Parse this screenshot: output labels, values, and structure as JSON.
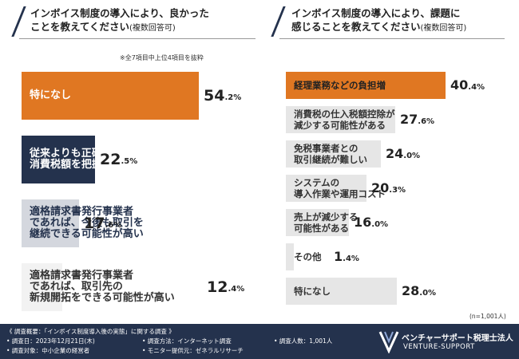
{
  "chart_data": [
    {
      "type": "bar",
      "title": "インボイス制度の導入により、良かったことを教えてください(複数回答可)",
      "title_lines": [
        "インボイス制度の導入により、良かった",
        "ことを教えてください"
      ],
      "title_suffix": "(複数回答可)",
      "note": "※全7項目中上位4項目を抜粋",
      "unit": "%",
      "xlim": [
        0,
        60
      ],
      "categories": [
        "特になし",
        "従来よりも正確に消費税額を把握できる",
        "適格請求書発行事業者であれば、今後も取引を継続できる可能性が高い",
        "適格請求書発行事業者であれば、取引先の新規開拓をできる可能性が高い"
      ],
      "values": [
        54.2,
        22.5,
        17.6,
        12.4
      ],
      "bar_colors": [
        "#e07722",
        "#24324d",
        "#d4d7de",
        "#f2f2f2"
      ],
      "label_colors": [
        "#ffffff",
        "#ffffff",
        "#24324d",
        "#333333"
      ],
      "label_lines": [
        [
          "特になし"
        ],
        [
          "従来よりも正確に",
          "消費税額を把握できる"
        ],
        [
          "適格請求書発行事業者",
          "であれば、今後も取引を",
          "継続できる可能性が高い"
        ],
        [
          "適格請求書発行事業者",
          "であれば、取引先の",
          "新規開拓をできる可能性が高い"
        ]
      ]
    },
    {
      "type": "bar",
      "title": "インボイス制度の導入により、課題に感じることを教えてください(複数回答可)",
      "title_lines": [
        "インボイス制度の導入により、課題に",
        "感じることを教えてください"
      ],
      "title_suffix": "(複数回答可)",
      "unit": "%",
      "xlim": [
        0,
        50
      ],
      "categories": [
        "経理業務などの負担増",
        "消費税の仕入税額控除が減少する可能性がある",
        "免税事業者との取引継続が難しい",
        "システムの導入作業や運用コスト",
        "売上が減少する可能性がある",
        "その他",
        "特になし"
      ],
      "values": [
        40.4,
        27.6,
        24.0,
        20.3,
        16.0,
        1.4,
        28.0
      ],
      "bar_colors": [
        "#e07722",
        "#e6e6e6",
        "#e6e6e6",
        "#e6e6e6",
        "#e6e6e6",
        "#e6e6e6",
        "#e6e6e6"
      ],
      "label_colors": [
        "#222222",
        "#333333",
        "#333333",
        "#333333",
        "#333333",
        "#333333",
        "#333333"
      ],
      "label_lines": [
        [
          "経理業務などの負担増"
        ],
        [
          "消費税の仕入税額控除が",
          "減少する可能性がある"
        ],
        [
          "免税事業者との",
          "取引継続が難しい"
        ],
        [
          "システムの",
          "導入作業や運用コスト"
        ],
        [
          "売上が減少する",
          "可能性がある"
        ],
        [
          "その他"
        ],
        [
          "特になし"
        ]
      ],
      "sample_note": "(n=1,001人)"
    }
  ],
  "footer": {
    "overview": "《 調査概要：「インボイス制度導入後の実態」に関する調査 》",
    "date": "• 調査日：2023年12月21日(木)",
    "target": "• 調査対象：中小企業の経営者",
    "method": "• 調査方法：インターネット調査",
    "provider": "• モニター提供元：ゼネラルリサーチ",
    "count": "• 調査人数：1,001人",
    "logo_jp": "ベンチャーサポート税理士法人",
    "logo_en": "VENTURE-SUPPORT"
  }
}
